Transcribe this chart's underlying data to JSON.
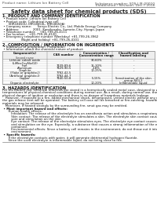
{
  "header_left": "Product name: Lithium Ion Battery Cell",
  "header_right_line1": "Substance number: SDS-LIB-00010",
  "header_right_line2": "Established / Revision: Dec.7.2016",
  "title": "Safety data sheet for chemical products (SDS)",
  "section1_title": "1. PRODUCT AND COMPANY IDENTIFICATION",
  "section1_lines": [
    " • Product name: Lithium Ion Battery Cell",
    " • Product code: Cylindrical-type cell",
    "      (IHR18650U, IHR18650L, IHR18650A)",
    " • Company name:      Sanyo Electric Co., Ltd. Mobile Energy Company",
    " • Address:              2001, Kamikosaka, Sumoto-City, Hyogo, Japan",
    " • Telephone number:    +81-799-26-4111",
    " • Fax number:    +81-799-26-4120",
    " • Emergency telephone number (Weekday) +81-799-26-3962",
    "                   (Night and holiday) +81-799-26-4101"
  ],
  "section2_title": "2. COMPOSITION / INFORMATION ON INGREDIENTS",
  "section2_sub1": " • Substance or preparation: Preparation",
  "section2_sub2": " • Information about the chemical nature of product:",
  "table_col_headers": [
    "Component(s)",
    "CAS number",
    "Concentration /\nConcentration range",
    "Classification and\nhazard labeling"
  ],
  "table_col2_sub": "Second name",
  "table_rows": [
    [
      "Lithium cobalt oxide",
      "-",
      "30-60%",
      "-"
    ],
    [
      "(LiMnxCoyNizO2)",
      "",
      "",
      ""
    ],
    [
      "Iron",
      "7439-89-6",
      "15-30%",
      "-"
    ],
    [
      "Aluminum",
      "7429-90-5",
      "2-8%",
      "-"
    ],
    [
      "Graphite",
      "",
      "10-25%",
      "-"
    ],
    [
      "(Flake or graphite-I)",
      "7782-42-5",
      "",
      ""
    ],
    [
      "(Artificial graphite-I)",
      "7782-44-7",
      "",
      ""
    ],
    [
      "Copper",
      "7440-50-8",
      "5-15%",
      "Sensitization of the skin"
    ],
    [
      "",
      "",
      "",
      "group R43.2"
    ],
    [
      "Organic electrolyte",
      "-",
      "10-20%",
      "Inflammable liquid"
    ]
  ],
  "section3_title": "3. HAZARDS IDENTIFICATION",
  "section3_para1": [
    "For the battery cell, chemical materials are stored in a hermetically sealed metal case, designed to withstand",
    "temperatures of physical-chemical conditions during normal use. As a result, during normal use, there is no",
    "physical danger of ignition or explosion and there is no danger of hazardous materials leakage."
  ],
  "section3_para2": [
    "   However, if exposed to a fire, added mechanical shock, decomposed, vented electric without any measure,",
    "the gas release vent will be operated. The battery cell case will be breached or fire-catching, hazardous",
    "materials may be released."
  ],
  "section3_para3": [
    "   Moreover, if heated strongly by the surrounding fire, smut gas may be emitted."
  ],
  "section3_hazard_title": " • Most important hazard and effects:",
  "section3_human": "      Human health effects:",
  "section3_human_lines": [
    "         Inhalation: The release of the electrolyte has an anesthesia action and stimulates a respiratory tract.",
    "         Skin contact: The release of the electrolyte stimulates a skin. The electrolyte skin contact causes a",
    "         sore and stimulation on the skin.",
    "         Eye contact: The release of the electrolyte stimulates eyes. The electrolyte eye contact causes a sore",
    "         and stimulation on the eye. Especially, a substance that causes a strong inflammation of the eyes is",
    "         contained.",
    "         Environmental effects: Since a battery cell remains in the environment, do not throw out it into the",
    "         environment."
  ],
  "section3_specific_title": " • Specific hazards:",
  "section3_specific_lines": [
    "      If the electrolyte contacts with water, it will generate detrimental hydrogen fluoride.",
    "      Since the used electrolyte is inflammable liquid, do not bring close to fire."
  ],
  "bg_color": "#ffffff",
  "header_color": "#555555",
  "body_color": "#111111",
  "line_color": "#888888",
  "header_fs": 3.2,
  "title_fs": 4.8,
  "section_fs": 3.6,
  "body_fs": 2.8,
  "table_fs": 2.7,
  "lh": 3.3
}
